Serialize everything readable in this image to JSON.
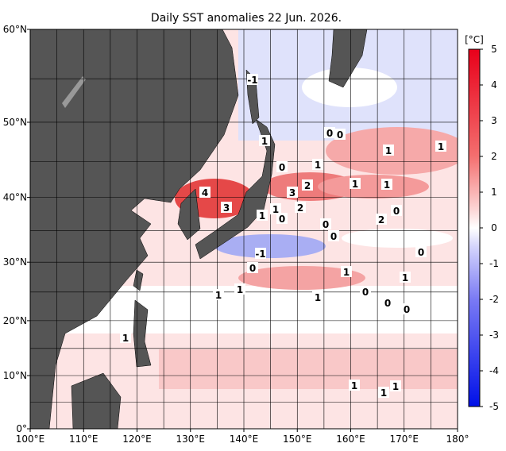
{
  "title": "Daily SST anomalies 22 Jun. 2026.",
  "map": {
    "lon_ticks": [
      {
        "value": 100,
        "label": "100°E"
      },
      {
        "value": 110,
        "label": "110°E"
      },
      {
        "value": 120,
        "label": "120°E"
      },
      {
        "value": 130,
        "label": "130°E"
      },
      {
        "value": 140,
        "label": "140°E"
      },
      {
        "value": 150,
        "label": "150°E"
      },
      {
        "value": 160,
        "label": "160°E"
      },
      {
        "value": 170,
        "label": "170°E"
      },
      {
        "value": 180,
        "label": "180°"
      }
    ],
    "lat_ticks": [
      {
        "value": 0,
        "label": "0°"
      },
      {
        "value": 10,
        "label": "10°N"
      },
      {
        "value": 20,
        "label": "20°N"
      },
      {
        "value": 30,
        "label": "30°N"
      },
      {
        "value": 40,
        "label": "40°N"
      },
      {
        "value": 50,
        "label": "50°N"
      },
      {
        "value": 60,
        "label": "60°N"
      }
    ]
  },
  "colorbar": {
    "unit": "[°C]",
    "ticks": [
      5,
      4,
      3,
      2,
      1,
      0,
      -1,
      -2,
      -3,
      -4,
      -5
    ]
  },
  "contour_labels": [
    "-1",
    "1",
    "0",
    "0",
    "0",
    "1",
    "1",
    "1",
    "4",
    "3",
    "2",
    "3",
    "1",
    "1",
    "1",
    "1",
    "0",
    "2",
    "0",
    "2",
    "0",
    "0",
    "-1",
    "0",
    "0",
    "1",
    "1",
    "1",
    "1",
    "1",
    "0",
    "0",
    "0",
    "1",
    "1",
    "1",
    "1"
  ]
}
